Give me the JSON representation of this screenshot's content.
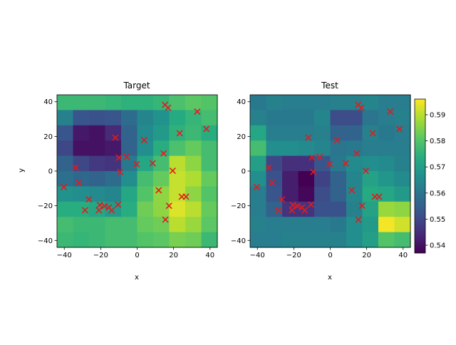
{
  "chart_data": {
    "type": "heatmap",
    "x_ticks": [
      -40,
      -20,
      0,
      20,
      40
    ],
    "y_ticks": [
      -40,
      -20,
      0,
      20,
      40
    ],
    "extent": [
      -44,
      44,
      -44,
      44
    ],
    "grid_size": 10,
    "colormap": "viridis",
    "colorbar": {
      "range": [
        0.537,
        0.596
      ],
      "ticks": [
        "0.54",
        "0.55",
        "0.56",
        "0.57",
        "0.58",
        "0.59"
      ],
      "tick_values": [
        0.54,
        0.55,
        0.56,
        0.57,
        0.58,
        0.59
      ]
    },
    "marker_color": "#e41a1c",
    "points": [
      [
        -40.3,
        -9.2
      ],
      [
        -33.8,
        2.0
      ],
      [
        -32.0,
        -6.7
      ],
      [
        -28.6,
        -22.6
      ],
      [
        -26.5,
        -16.3
      ],
      [
        -21.0,
        -22.6
      ],
      [
        -20.5,
        -19.5
      ],
      [
        -18.0,
        -20.2
      ],
      [
        -15.5,
        -21.0
      ],
      [
        -14.0,
        -22.7
      ],
      [
        -12.0,
        19.3
      ],
      [
        -10.5,
        -19.3
      ],
      [
        -10.0,
        7.8
      ],
      [
        -9.3,
        -0.5
      ],
      [
        -5.8,
        8.2
      ],
      [
        -0.3,
        4.0
      ],
      [
        3.8,
        17.8
      ],
      [
        8.5,
        4.5
      ],
      [
        11.8,
        -11.1
      ],
      [
        14.5,
        10.2
      ],
      [
        15.3,
        38.2
      ],
      [
        15.5,
        -28.0
      ],
      [
        17.0,
        36.5
      ],
      [
        17.5,
        -20.0
      ],
      [
        19.5,
        0.2
      ],
      [
        23.3,
        21.8
      ],
      [
        24.5,
        -14.8
      ],
      [
        26.8,
        -14.8
      ],
      [
        33.0,
        34.3
      ],
      [
        38.0,
        24.3
      ]
    ],
    "panels": [
      {
        "title": "Target",
        "xlabel": "x",
        "ylabel": "y",
        "grid": [
          [
            0.577,
            0.577,
            0.577,
            0.576,
            0.575,
            0.575,
            0.576,
            0.579,
            0.581,
            0.58
          ],
          [
            0.563,
            0.553,
            0.552,
            0.553,
            0.558,
            0.564,
            0.567,
            0.573,
            0.576,
            0.578
          ],
          [
            0.553,
            0.541,
            0.54,
            0.544,
            0.556,
            0.565,
            0.569,
            0.575,
            0.577,
            0.574
          ],
          [
            0.55,
            0.54,
            0.54,
            0.541,
            0.556,
            0.566,
            0.574,
            0.579,
            0.582,
            0.578
          ],
          [
            0.556,
            0.55,
            0.547,
            0.546,
            0.561,
            0.572,
            0.578,
            0.59,
            0.586,
            0.578
          ],
          [
            0.559,
            0.557,
            0.556,
            0.558,
            0.566,
            0.578,
            0.582,
            0.591,
            0.589,
            0.582
          ],
          [
            0.567,
            0.566,
            0.565,
            0.564,
            0.572,
            0.58,
            0.586,
            0.591,
            0.586,
            0.58
          ],
          [
            0.574,
            0.574,
            0.572,
            0.569,
            0.574,
            0.583,
            0.586,
            0.593,
            0.59,
            0.582
          ],
          [
            0.578,
            0.577,
            0.577,
            0.578,
            0.578,
            0.582,
            0.583,
            0.59,
            0.587,
            0.581
          ],
          [
            0.577,
            0.576,
            0.577,
            0.578,
            0.578,
            0.58,
            0.581,
            0.584,
            0.583,
            0.577
          ]
        ]
      },
      {
        "title": "Test",
        "xlabel": "x",
        "ylabel": "",
        "grid": [
          [
            0.561,
            0.563,
            0.562,
            0.562,
            0.562,
            0.563,
            0.563,
            0.564,
            0.562,
            0.562
          ],
          [
            0.563,
            0.561,
            0.561,
            0.561,
            0.564,
            0.551,
            0.551,
            0.56,
            0.562,
            0.563
          ],
          [
            0.572,
            0.562,
            0.562,
            0.562,
            0.563,
            0.556,
            0.556,
            0.563,
            0.561,
            0.562
          ],
          [
            0.578,
            0.566,
            0.566,
            0.565,
            0.564,
            0.56,
            0.561,
            0.562,
            0.562,
            0.562
          ],
          [
            0.57,
            0.55,
            0.545,
            0.545,
            0.553,
            0.561,
            0.565,
            0.566,
            0.565,
            0.563
          ],
          [
            0.566,
            0.552,
            0.542,
            0.537,
            0.549,
            0.556,
            0.564,
            0.571,
            0.568,
            0.565
          ],
          [
            0.562,
            0.553,
            0.542,
            0.538,
            0.551,
            0.556,
            0.564,
            0.573,
            0.572,
            0.569
          ],
          [
            0.562,
            0.556,
            0.546,
            0.546,
            0.552,
            0.552,
            0.563,
            0.571,
            0.587,
            0.586
          ],
          [
            0.563,
            0.562,
            0.562,
            0.562,
            0.562,
            0.561,
            0.566,
            0.569,
            0.595,
            0.592
          ],
          [
            0.562,
            0.562,
            0.563,
            0.563,
            0.563,
            0.563,
            0.566,
            0.57,
            0.58,
            0.578
          ]
        ]
      }
    ]
  }
}
